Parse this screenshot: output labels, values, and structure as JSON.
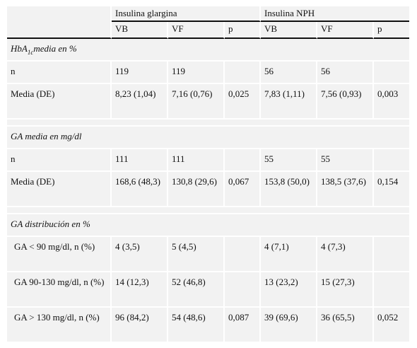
{
  "header": {
    "group1": "Insulina glargina",
    "group2": "Insulina NPH",
    "columns": [
      "VB",
      "VF",
      "p",
      "VB",
      "VF",
      "p"
    ]
  },
  "sections": [
    {
      "title_main": "HbA",
      "title_sub": "1c",
      "title_rest": "media en %",
      "rows": [
        {
          "label": "n",
          "g_vb": "119",
          "g_vf": "119",
          "g_p": "",
          "n_vb": "56",
          "n_vf": "56",
          "n_p": ""
        },
        {
          "label": "Media (DE)",
          "g_vb": "8,23 (1,04)",
          "g_vf": "7,16 (0,76)",
          "g_p": "0,025",
          "n_vb": "7,83 (1,11)",
          "n_vf": "7,56 (0,93)",
          "n_p": "0,003"
        }
      ]
    },
    {
      "title": "GA media en mg/dl",
      "rows": [
        {
          "label": "n",
          "g_vb": "111",
          "g_vf": "111",
          "g_p": "",
          "n_vb": "55",
          "n_vf": "55",
          "n_p": ""
        },
        {
          "label": "Media (DE)",
          "g_vb": "168,6 (48,3)",
          "g_vf": "130,8 (29,6)",
          "g_p": "0,067",
          "n_vb": "153,8 (50,0)",
          "n_vf": "138,5 (37,6)",
          "n_p": "0,154"
        }
      ]
    },
    {
      "title": "GA distribución en %",
      "rows": [
        {
          "label": "GA < 90 mg/dl, n (%)",
          "g_vb": "4 (3,5)",
          "g_vf": "5 (4,5)",
          "g_p": "",
          "n_vb": "4 (7,1)",
          "n_vf": "4 (7,3)",
          "n_p": ""
        },
        {
          "label": "GA 90-130 mg/dl, n (%)",
          "g_vb": "14 (12,3)",
          "g_vf": "52 (46,8)",
          "g_p": "",
          "n_vb": "13 (23,2)",
          "n_vf": "15 (27,3)",
          "n_p": ""
        },
        {
          "label": "GA > 130 mg/dl, n (%)",
          "g_vb": "96 (84,2)",
          "g_vf": "54 (48,6)",
          "g_p": "0,087",
          "n_vb": "39 (69,6)",
          "n_vf": "36 (65,5)",
          "n_p": "0,052"
        }
      ]
    }
  ]
}
